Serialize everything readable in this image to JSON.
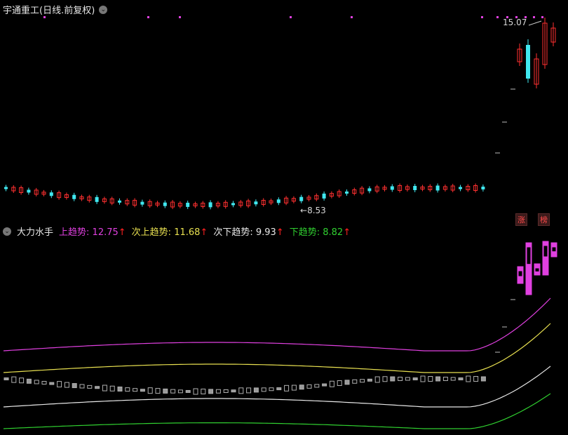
{
  "header": {
    "title": "宇通重工(日线.前复权)",
    "dropdown_icon": "chevron-down-icon"
  },
  "price_labels": {
    "high": "15.07",
    "low": "8.53"
  },
  "indicator": {
    "name": "大力水手",
    "dropdown_icon": "chevron-down-icon",
    "items": [
      {
        "label": "上趋势:",
        "value": "12.75",
        "arrow": "↑",
        "color": "#e040e0"
      },
      {
        "label": "次上趋势:",
        "value": "11.68",
        "arrow": "↑",
        "color": "#e8e050"
      },
      {
        "label": "次下趋势:",
        "value": "9.93",
        "arrow": "↑",
        "color": "#e8e8e8"
      },
      {
        "label": "下趋势:",
        "value": "8.82",
        "arrow": "↑",
        "color": "#30d030"
      }
    ]
  },
  "badges": {
    "zhang": "涨",
    "bang": "榜"
  },
  "colors": {
    "up": "#ff3030",
    "down": "#40e8f0",
    "magenta": "#e040e0",
    "yellow": "#e8e050",
    "white": "#e8e8e8",
    "green": "#30d030"
  }
}
